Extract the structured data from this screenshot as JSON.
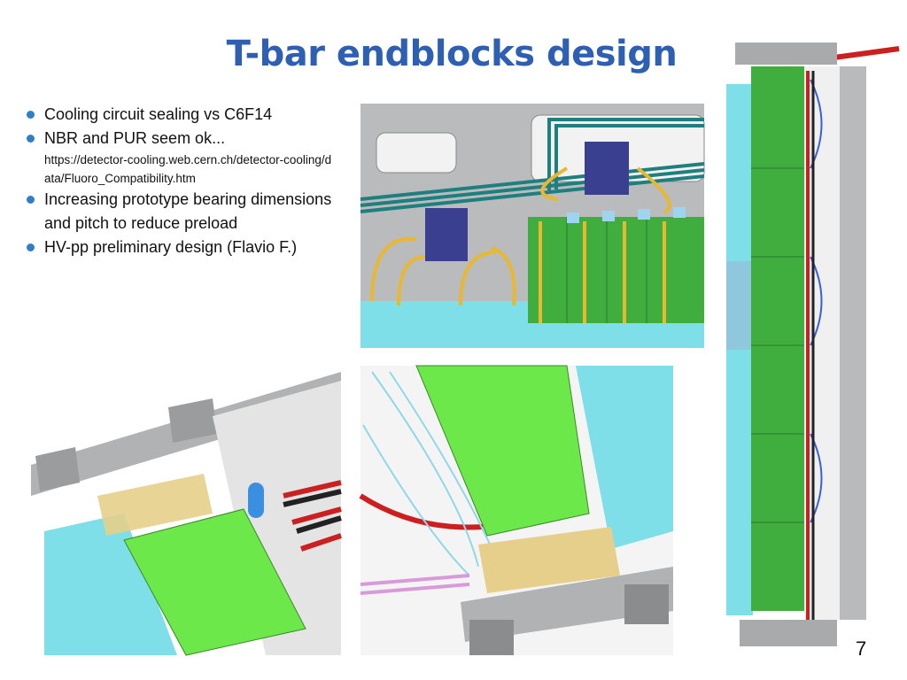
{
  "title": "T-bar endblocks design",
  "bullets": [
    {
      "text": "Cooling circuit sealing vs C6F14"
    },
    {
      "text": "NBR and PUR seem ok...",
      "note": "https://detector-cooling.web.cern.ch/detector-cooling/data/Fluoro_Compatibility.htm"
    },
    {
      "text": "Increasing prototype bearing dimensions and pitch to reduce preload"
    },
    {
      "text": "HV-pp preliminary design  (Flavio F.)"
    }
  ],
  "page_number": "7"
}
